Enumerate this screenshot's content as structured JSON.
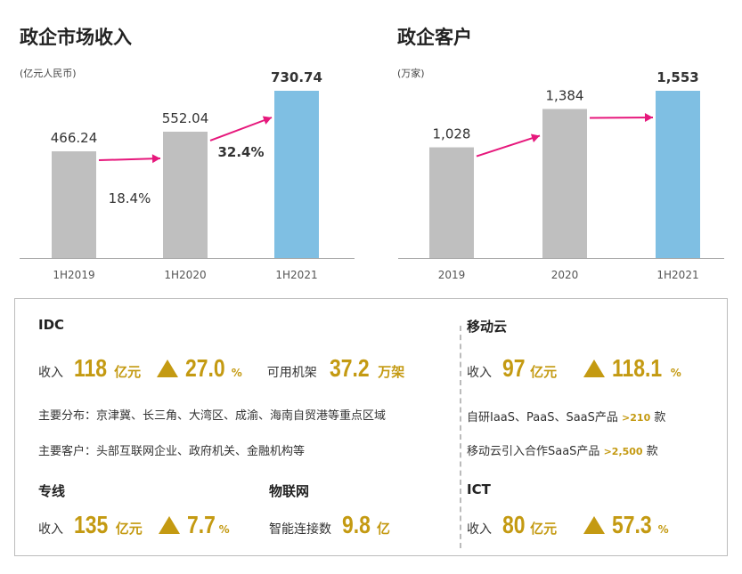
{
  "charts_colors": {
    "gray": "#bfbfbf",
    "blue": "#7fbfe3",
    "arrow": "#e6187c",
    "gold": "#c49a12"
  },
  "chart_data": [
    {
      "type": "bar",
      "title": "政企市场收入",
      "subtitle": "(亿元人民币)",
      "categories": [
        "1H2019",
        "1H2020",
        "1H2021"
      ],
      "values": [
        466.24,
        552.04,
        730.74
      ],
      "value_labels": [
        "466.24",
        "552.04",
        "730.74"
      ],
      "growth": [
        "18.4%",
        "32.4%"
      ],
      "ylim": [
        0,
        730.74
      ]
    },
    {
      "type": "bar",
      "title": "政企客户",
      "subtitle": "(万家)",
      "categories": [
        "2019",
        "2020",
        "1H2021"
      ],
      "values": [
        1028,
        1384,
        1553
      ],
      "value_labels": [
        "1,028",
        "1,384",
        "1,553"
      ],
      "ylim": [
        0,
        1553
      ]
    }
  ],
  "idc": {
    "title": "IDC",
    "revenue_label": "收入",
    "revenue_value": "118",
    "revenue_unit": "亿元",
    "growth_value": "27.0",
    "growth_unit": "%",
    "racks_label": "可用机架",
    "racks_value": "37.2",
    "racks_unit": "万架",
    "distribution": "主要分布：京津冀、长三角、大湾区、成渝、海南自贸港等重点区域",
    "customers": "主要客户：头部互联网企业、政府机关、金融机构等"
  },
  "mobile_cloud": {
    "title": "移动云",
    "revenue_label": "收入",
    "revenue_value": "97",
    "revenue_unit": "亿元",
    "growth_value": "118.1",
    "growth_unit": "%",
    "line1_prefix": "自研IaaS、PaaS、SaaS产品",
    "line1_hl": ">210",
    "line1_suffix": "款",
    "line2_prefix": "移动云引入合作SaaS产品",
    "line2_hl": ">2,500",
    "line2_suffix": "款"
  },
  "dedicated": {
    "title": "专线",
    "revenue_label": "收入",
    "revenue_value": "135",
    "revenue_unit": "亿元",
    "growth_value": "7.7",
    "growth_unit": "%"
  },
  "iot": {
    "title": "物联网",
    "label": "智能连接数",
    "value": "9.8",
    "unit": "亿"
  },
  "ict": {
    "title": "ICT",
    "revenue_label": "收入",
    "revenue_value": "80",
    "revenue_unit": "亿元",
    "growth_value": "57.3",
    "growth_unit": "%"
  }
}
